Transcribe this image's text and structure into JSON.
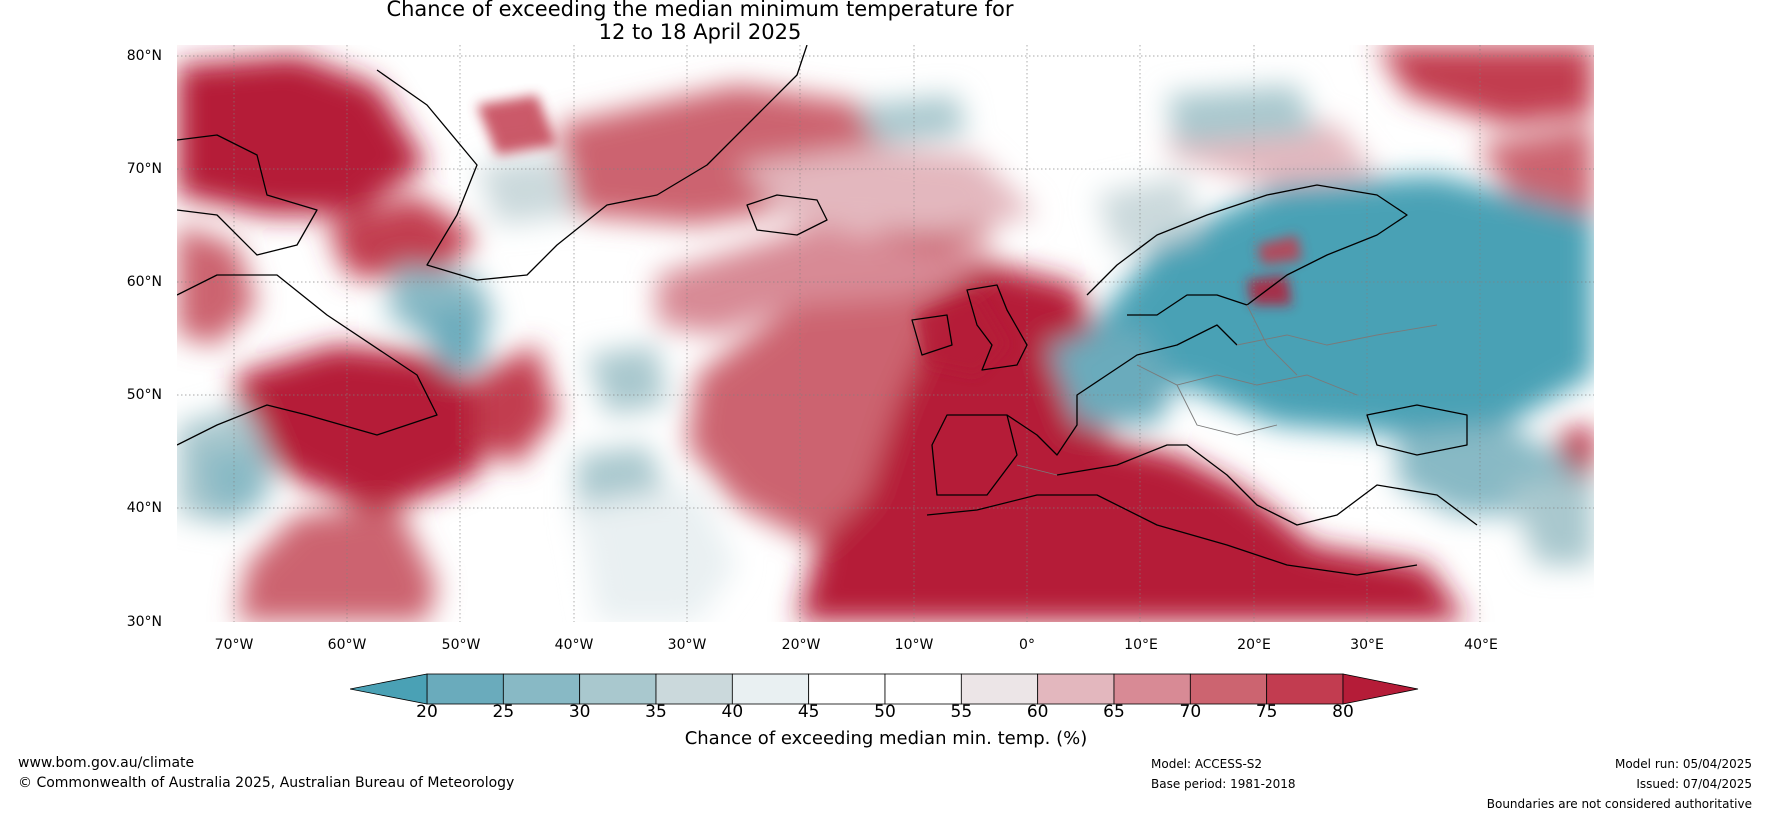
{
  "title": {
    "line1": "Chance of exceeding the median minimum temperature for",
    "line2": "12 to 18 April 2025"
  },
  "map": {
    "latitude_labels": [
      "80°N",
      "70°N",
      "60°N",
      "50°N",
      "40°N",
      "30°N"
    ],
    "longitude_labels": [
      "70°W",
      "60°W",
      "50°W",
      "40°W",
      "30°W",
      "20°W",
      "10°W",
      "0°",
      "10°E",
      "20°E",
      "30°E",
      "40°E"
    ],
    "extent": {
      "lon_min": -75,
      "lon_max": 50,
      "lat_min": 30,
      "lat_max": 81
    },
    "warm_regions": [
      "British Isles",
      "Iberia",
      "North Africa",
      "Mediterranean",
      "Eastern North Atlantic",
      "Greenland west",
      "Nova Scotia"
    ],
    "cool_regions": [
      "Eastern Europe",
      "Baltic and western Russia",
      "Scandinavia east"
    ]
  },
  "colorbar": {
    "title": "Chance of exceeding median min. temp. (%)",
    "ticks": [
      "20",
      "25",
      "30",
      "35",
      "40",
      "45",
      "50",
      "55",
      "60",
      "65",
      "70",
      "75",
      "80"
    ],
    "colors": [
      "#4aa1b5",
      "#6aabbc",
      "#88b9c5",
      "#a9c8ce",
      "#cbd9dc",
      "#e9f0f2",
      "#ffffff",
      "#ffffff",
      "#ece5e7",
      "#e3b7be",
      "#d88a95",
      "#cc6470",
      "#c23c50",
      "#b51c38"
    ]
  },
  "footer": {
    "url": "www.bom.gov.au/climate",
    "copyright": "© Commonwealth of Australia 2025, Australian Bureau of Meteorology",
    "model": "Model: ACCESS-S2",
    "base_period": "Base period: 1981-2018",
    "model_run": "Model run: 05/04/2025",
    "issued": "Issued: 07/04/2025",
    "disclaimer": "Boundaries are not considered authoritative"
  }
}
